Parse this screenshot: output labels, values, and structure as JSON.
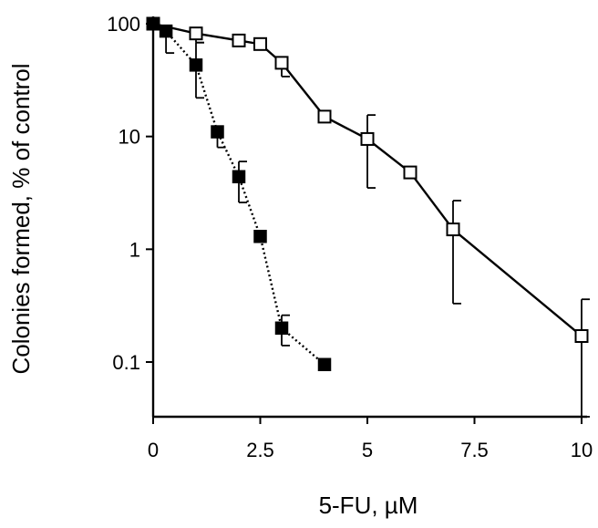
{
  "chart_data": {
    "type": "scatter",
    "title": "",
    "xlabel": "5-FU, µM",
    "ylabel": "Colonies formed, % of control",
    "x_scale": "linear",
    "y_scale": "log",
    "xlim": [
      0,
      10
    ],
    "ylim": [
      0.03,
      100
    ],
    "x_ticks": [
      0,
      2.5,
      5,
      7.5,
      10
    ],
    "x_tick_labels": [
      "0",
      "2.5",
      "5",
      "7.5",
      "10"
    ],
    "y_ticks": [
      100,
      10,
      1,
      0.1
    ],
    "y_tick_labels": [
      "100",
      "10",
      "1",
      "0.1"
    ],
    "grid": false,
    "legend": "none",
    "series": [
      {
        "marker": "open-square",
        "line": "solid",
        "color": "#000000",
        "points": [
          {
            "x": 0,
            "y": 100
          },
          {
            "x": 1,
            "y": 82,
            "err_low": 68
          },
          {
            "x": 2,
            "y": 71
          },
          {
            "x": 2.5,
            "y": 66
          },
          {
            "x": 3,
            "y": 45,
            "err_low": 34
          },
          {
            "x": 4,
            "y": 15
          },
          {
            "x": 5,
            "y": 9.5,
            "err_high": 15.5,
            "err_low": 3.5
          },
          {
            "x": 6,
            "y": 4.8
          },
          {
            "x": 7,
            "y": 1.5,
            "err_high": 2.7,
            "err_low": 0.33
          },
          {
            "x": 10,
            "y": 0.17,
            "err_high": 0.36,
            "err_low": 0.03
          }
        ]
      },
      {
        "marker": "filled-square",
        "line": "dotted",
        "color": "#000000",
        "points": [
          {
            "x": 0,
            "y": 100
          },
          {
            "x": 0.3,
            "y": 86,
            "err_low": 55
          },
          {
            "x": 1,
            "y": 43,
            "err_high": 68,
            "err_low": 22
          },
          {
            "x": 1.5,
            "y": 11,
            "err_low": 8
          },
          {
            "x": 2,
            "y": 4.4,
            "err_high": 6.0,
            "err_low": 2.6
          },
          {
            "x": 2.5,
            "y": 1.3
          },
          {
            "x": 3,
            "y": 0.2,
            "err_high": 0.26,
            "err_low": 0.14
          },
          {
            "x": 4,
            "y": 0.095
          }
        ]
      }
    ]
  }
}
